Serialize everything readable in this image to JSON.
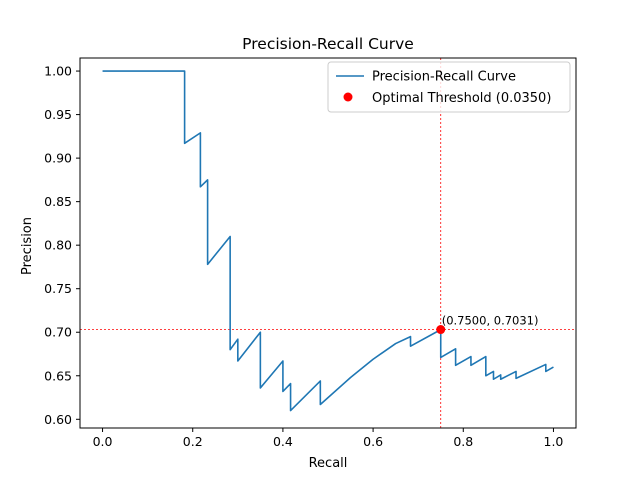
{
  "chart_data": {
    "type": "line",
    "title": "Precision-Recall Curve",
    "xlabel": "Recall",
    "ylabel": "Precision",
    "xlim": [
      -0.05,
      1.05
    ],
    "ylim": [
      0.59,
      1.015
    ],
    "x_ticks": [
      0.0,
      0.2,
      0.4,
      0.6,
      0.8,
      1.0
    ],
    "x_tick_labels": [
      "0.0",
      "0.2",
      "0.4",
      "0.6",
      "0.8",
      "1.0"
    ],
    "y_ticks": [
      0.6,
      0.65,
      0.7,
      0.75,
      0.8,
      0.85,
      0.9,
      0.95,
      1.0
    ],
    "y_tick_labels": [
      "0.60",
      "0.65",
      "0.70",
      "0.75",
      "0.80",
      "0.85",
      "0.90",
      "0.95",
      "1.00"
    ],
    "grid": false,
    "legend_position": "top-right",
    "series": [
      {
        "name": "Precision-Recall Curve",
        "color": "#1f77b4",
        "x": [
          0.0,
          0.182,
          0.182,
          0.217,
          0.217,
          0.233,
          0.233,
          0.283,
          0.283,
          0.3,
          0.3,
          0.35,
          0.35,
          0.4,
          0.4,
          0.417,
          0.417,
          0.483,
          0.483,
          0.55,
          0.6,
          0.65,
          0.683,
          0.683,
          0.75,
          0.75,
          0.783,
          0.783,
          0.817,
          0.817,
          0.85,
          0.85,
          0.867,
          0.867,
          0.883,
          0.883,
          0.917,
          0.917,
          0.983,
          0.983,
          1.0
        ],
        "y": [
          1.0,
          1.0,
          0.917,
          0.929,
          0.867,
          0.875,
          0.778,
          0.81,
          0.68,
          0.692,
          0.667,
          0.7,
          0.636,
          0.667,
          0.632,
          0.641,
          0.61,
          0.644,
          0.617,
          0.648,
          0.669,
          0.687,
          0.695,
          0.684,
          0.703,
          0.671,
          0.681,
          0.662,
          0.672,
          0.662,
          0.672,
          0.65,
          0.655,
          0.646,
          0.651,
          0.646,
          0.655,
          0.647,
          0.663,
          0.655,
          0.66
        ]
      }
    ],
    "optimal_point": {
      "name": "Optimal Threshold (0.0350)",
      "x": 0.75,
      "y": 0.7031,
      "color": "#ff0000",
      "label": "(0.7500, 0.7031)"
    }
  }
}
